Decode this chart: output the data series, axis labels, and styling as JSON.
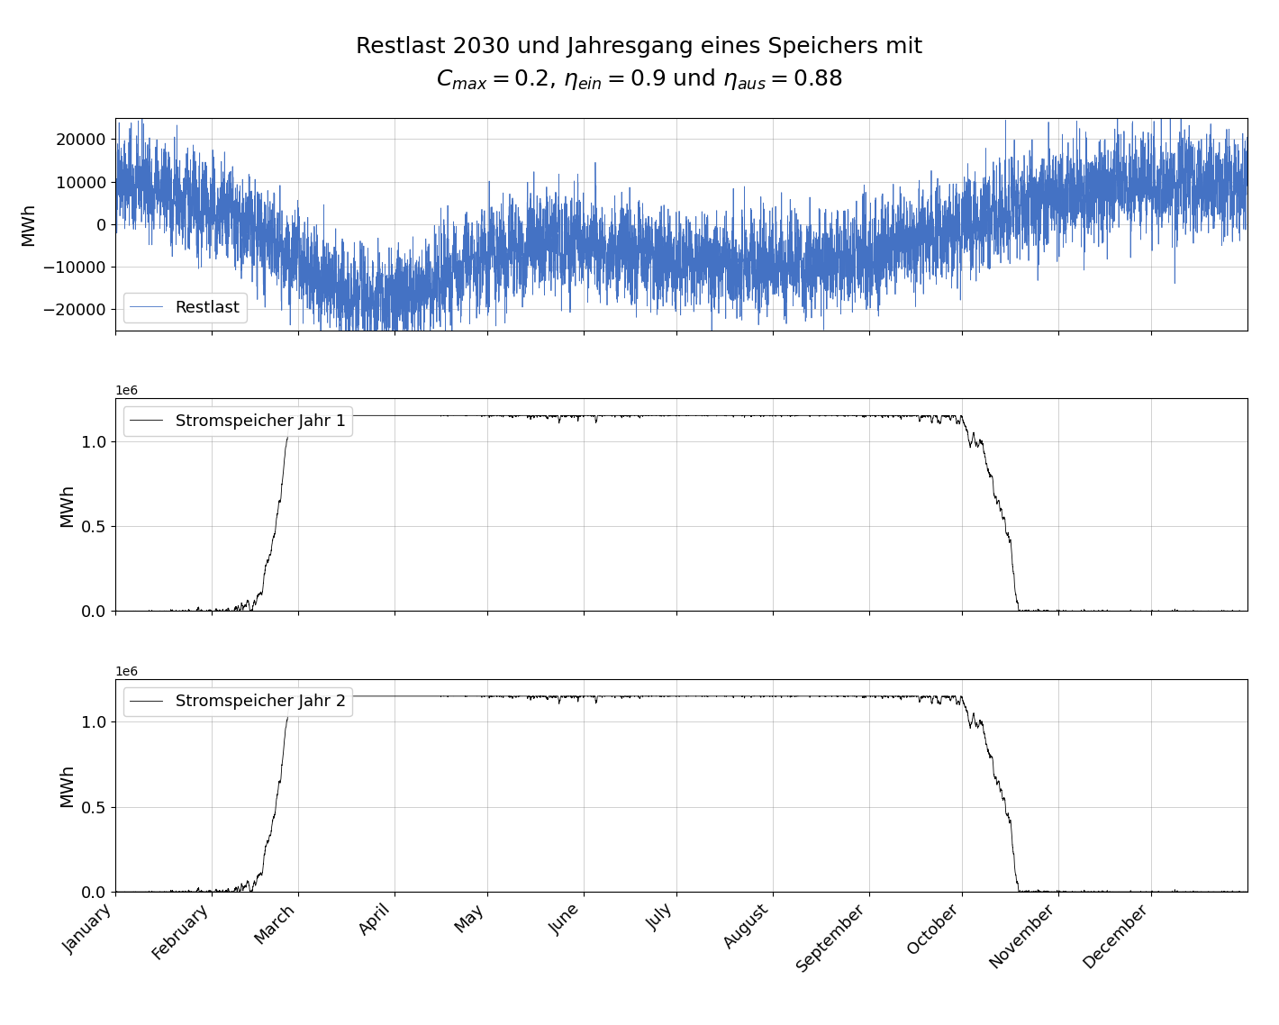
{
  "title_line1": "Restlast 2030 und Jahresgang eines Speichers mit",
  "title_line2": "$C_{max} = 0.2$, $\\eta_{ein} = 0.9$ und $\\eta_{aus} = 0.88$",
  "ylabel": "MWh",
  "restlast_color": "#4472C4",
  "speicher_color": "black",
  "restlast_label": "Restlast",
  "speicher1_label": "Stromspeicher Jahr 1",
  "speicher2_label": "Stromspeicher Jahr 2",
  "restlast_ylim": [
    -25000,
    25000
  ],
  "speicher_ylim": [
    0,
    1250000
  ],
  "n_hours": 8760,
  "seed": 42,
  "title_fontsize": 18,
  "axis_fontsize": 14,
  "legend_fontsize": 13,
  "tick_fontsize": 13,
  "C_max": 1150000,
  "eta_ein": 0.9,
  "eta_aus": 0.88
}
